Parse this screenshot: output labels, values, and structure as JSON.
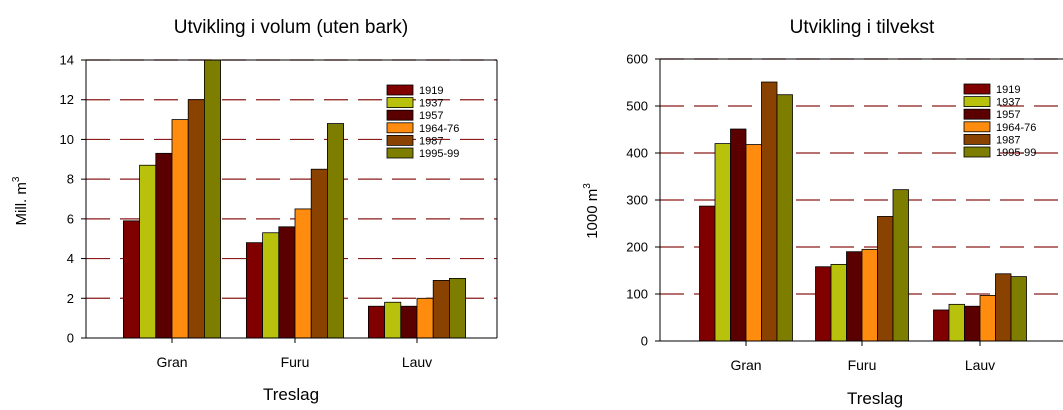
{
  "colors": {
    "series": [
      "#800000",
      "#b8c20c",
      "#5a0000",
      "#ff8c0f",
      "#8a4200",
      "#7d7d00"
    ],
    "gridline": "#8b1a1a",
    "axis": "#000000",
    "background": "#ffffff"
  },
  "chart_data": [
    {
      "type": "bar",
      "title": "Utvikling i volum (uten bark)",
      "xlabel": "Treslag",
      "ylabel": "Mill. m",
      "ylabel_sup": "3",
      "categories": [
        "Gran",
        "Furu",
        "Lauv"
      ],
      "ylim": [
        0,
        14
      ],
      "yticks": [
        0,
        2,
        4,
        6,
        8,
        10,
        12,
        14
      ],
      "grid": "dashed horizontal",
      "legend_position": "top-right",
      "series": [
        {
          "name": "1919",
          "values": [
            5.9,
            4.8,
            1.6
          ]
        },
        {
          "name": "1937",
          "values": [
            8.7,
            5.3,
            1.8
          ]
        },
        {
          "name": "1957",
          "values": [
            9.3,
            5.6,
            1.6
          ]
        },
        {
          "name": "1964-76",
          "values": [
            11.0,
            6.5,
            2.0
          ]
        },
        {
          "name": "1987",
          "values": [
            12.0,
            8.5,
            2.9
          ]
        },
        {
          "name": "1995-99",
          "values": [
            14.0,
            10.8,
            3.0
          ]
        }
      ]
    },
    {
      "type": "bar",
      "title": "Utvikling i tilvekst",
      "xlabel": "Treslag",
      "ylabel": "1000 m",
      "ylabel_sup": "3",
      "categories": [
        "Gran",
        "Furu",
        "Lauv"
      ],
      "ylim": [
        0,
        600
      ],
      "yticks": [
        0,
        100,
        200,
        300,
        400,
        500,
        600
      ],
      "grid": "dashed horizontal",
      "legend_position": "top-right",
      "series": [
        {
          "name": "1919",
          "values": [
            287,
            158,
            66
          ]
        },
        {
          "name": "1937",
          "values": [
            420,
            163,
            78
          ]
        },
        {
          "name": "1957",
          "values": [
            451,
            190,
            74
          ]
        },
        {
          "name": "1964-76",
          "values": [
            418,
            195,
            97
          ]
        },
        {
          "name": "1987",
          "values": [
            551,
            265,
            143
          ]
        },
        {
          "name": "1995-99",
          "values": [
            524,
            322,
            137
          ]
        }
      ]
    }
  ]
}
